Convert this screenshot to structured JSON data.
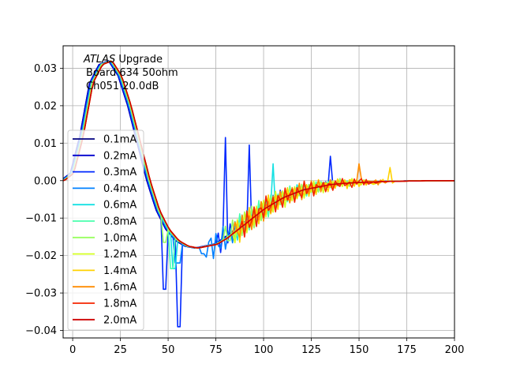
{
  "annotation": {
    "brand": "ATLAS",
    "brand_suffix": " Upgrade",
    "line2": "Board 634 50ohm",
    "line3": "Ch051 20.0dB"
  },
  "colors": {
    "0.1mA": "#00007f",
    "0.2mA": "#0000cd",
    "0.3mA": "#0028ff",
    "0.4mA": "#0080ff",
    "0.6mA": "#15e1e3",
    "0.8mA": "#4affad",
    "1.0mA": "#98ff5f",
    "1.2mA": "#d5ff22",
    "1.4mA": "#ffd200",
    "1.6mA": "#ff8c00",
    "1.8mA": "#f42400",
    "2.0mA": "#cd0000"
  },
  "chart_data": {
    "type": "line",
    "title": "",
    "xlabel": "",
    "ylabel": "",
    "xlim": [
      -5,
      200
    ],
    "ylim": [
      -0.042,
      0.036
    ],
    "xticks": [
      0,
      25,
      50,
      75,
      100,
      125,
      150,
      175,
      200
    ],
    "xtick_labels": [
      "0",
      "25",
      "50",
      "75",
      "100",
      "125",
      "150",
      "175",
      "200"
    ],
    "yticks": [
      -0.04,
      -0.03,
      -0.02,
      -0.01,
      0.0,
      0.01,
      0.02,
      0.03
    ],
    "ytick_labels": [
      "−0.04",
      "−0.03",
      "−0.02",
      "−0.01",
      "0.00",
      "0.01",
      "0.02",
      "0.03"
    ],
    "grid": true,
    "legend_position": "left",
    "base_curve": {
      "x": [
        -5,
        0,
        5,
        10,
        15,
        20,
        25,
        30,
        35,
        40,
        45,
        50,
        55,
        60,
        65,
        70,
        75,
        80,
        85,
        90,
        95,
        100,
        105,
        110,
        115,
        120,
        125,
        130,
        135,
        140,
        145,
        150,
        155,
        160,
        165,
        170,
        175,
        180,
        185,
        190,
        195,
        200
      ],
      "y": [
        0.0,
        0.002,
        0.012,
        0.026,
        0.031,
        0.032,
        0.028,
        0.02,
        0.01,
        0.0,
        -0.008,
        -0.013,
        -0.016,
        -0.0175,
        -0.018,
        -0.0175,
        -0.017,
        -0.0155,
        -0.0135,
        -0.0115,
        -0.0095,
        -0.0075,
        -0.006,
        -0.0045,
        -0.0035,
        -0.0025,
        -0.002,
        -0.0015,
        -0.001,
        -0.0008,
        -0.0006,
        -0.0005,
        -0.0004,
        -0.0003,
        -0.0002,
        -0.0002,
        -0.0001,
        -0.0001,
        0.0,
        0.0,
        0.0,
        0.0
      ]
    },
    "series": [
      {
        "name": "0.1mA",
        "peak_x": 18,
        "neg_extremes": [],
        "osc_start": 999,
        "osc_end": 999,
        "spikes": []
      },
      {
        "name": "0.2mA",
        "peak_x": 18,
        "neg_extremes": [],
        "osc_start": 999,
        "osc_end": 999,
        "spikes": []
      },
      {
        "name": "0.3mA",
        "peak_x": 19,
        "neg_extremes": [
          [
            48,
            -0.029
          ],
          [
            56,
            -0.039
          ]
        ],
        "osc_start": 76,
        "osc_end": 140,
        "spikes": [
          [
            80.5,
            0.0115
          ],
          [
            92,
            0.0095
          ],
          [
            135,
            0.0065
          ]
        ]
      },
      {
        "name": "0.4mA",
        "peak_x": 19,
        "neg_extremes": [
          [
            55,
            -0.022
          ],
          [
            68,
            -0.0195
          ]
        ],
        "osc_start": 70,
        "osc_end": 140,
        "spikes": []
      },
      {
        "name": "0.6mA",
        "peak_x": 20,
        "neg_extremes": [
          [
            53,
            -0.0235
          ]
        ],
        "osc_start": 85,
        "osc_end": 145,
        "spikes": [
          [
            105,
            0.0045
          ]
        ]
      },
      {
        "name": "0.8mA",
        "peak_x": 20,
        "neg_extremes": [
          [
            52,
            -0.0235
          ]
        ],
        "osc_start": 85,
        "osc_end": 150,
        "spikes": []
      },
      {
        "name": "1.0mA",
        "peak_x": 20,
        "neg_extremes": [
          [
            48,
            -0.0165
          ]
        ],
        "osc_start": 80,
        "osc_end": 160,
        "spikes": []
      },
      {
        "name": "1.2mA",
        "peak_x": 21,
        "neg_extremes": [],
        "osc_start": 85,
        "osc_end": 160,
        "spikes": []
      },
      {
        "name": "1.4mA",
        "peak_x": 21,
        "neg_extremes": [],
        "osc_start": 85,
        "osc_end": 168,
        "spikes": [
          [
            166,
            0.0035
          ]
        ]
      },
      {
        "name": "1.6mA",
        "peak_x": 21,
        "neg_extremes": [],
        "osc_start": 85,
        "osc_end": 165,
        "spikes": [
          [
            150,
            0.0045
          ]
        ]
      },
      {
        "name": "1.8mA",
        "peak_x": 21,
        "neg_extremes": [],
        "osc_start": 88,
        "osc_end": 160,
        "spikes": []
      },
      {
        "name": "2.0mA",
        "peak_x": 21,
        "neg_extremes": [],
        "osc_start": 999,
        "osc_end": 999,
        "spikes": []
      }
    ],
    "legend": [
      "0.1mA",
      "0.2mA",
      "0.3mA",
      "0.4mA",
      "0.6mA",
      "0.8mA",
      "1.0mA",
      "1.2mA",
      "1.4mA",
      "1.6mA",
      "1.8mA",
      "2.0mA"
    ]
  }
}
